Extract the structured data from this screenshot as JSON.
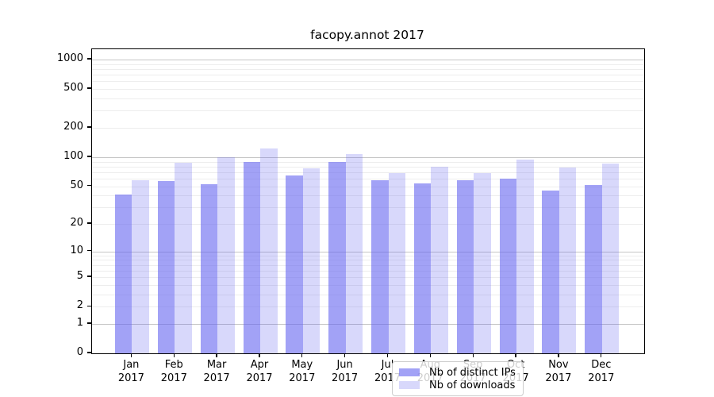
{
  "title": "facopy.annot 2017",
  "chart_data": {
    "type": "bar",
    "title": "facopy.annot 2017",
    "categories": [
      "Jan 2017",
      "Feb 2017",
      "Mar 2017",
      "Apr 2017",
      "May 2017",
      "Jun 2017",
      "Jul 2017",
      "Aug 2017",
      "Sep 2017",
      "Oct 2017",
      "Nov 2017",
      "Dec 2017"
    ],
    "series": [
      {
        "name": "Nb of distinct IPs",
        "values": [
          41,
          57,
          52,
          90,
          65,
          90,
          58,
          53,
          58,
          60,
          45,
          51
        ],
        "color": "rgba(100,100,240,0.60)"
      },
      {
        "name": "Nb of downloads",
        "values": [
          58,
          87,
          100,
          122,
          77,
          108,
          68,
          79,
          68,
          94,
          78,
          86
        ],
        "color": "rgba(100,100,240,0.25)"
      }
    ],
    "xlabel": "",
    "ylabel": "",
    "yscale": "log10(value+1)",
    "yticks": [
      1000,
      500,
      200,
      100,
      50,
      20,
      10,
      5,
      2,
      1,
      0
    ],
    "minor_gridlines": [
      2,
      3,
      4,
      5,
      6,
      7,
      8,
      9,
      20,
      30,
      40,
      50,
      60,
      70,
      80,
      90,
      200,
      300,
      400,
      500,
      600,
      700,
      800,
      900
    ],
    "major_gridlines": [
      1,
      10,
      100,
      1000
    ],
    "ylim": [
      0,
      1100
    ],
    "grid": "horizontal major+minor",
    "legend_position": "lower center",
    "colors": {
      "bar_dark": "rgba(100,100,240,0.60)",
      "bar_light": "rgba(100,100,240,0.25)",
      "grid_major": "#c6c6c6",
      "grid_minor": "#ededed",
      "axis": "#000000",
      "legend_border": "#cccccc"
    }
  },
  "legend": {
    "items": [
      {
        "label": "Nb of distinct IPs"
      },
      {
        "label": "Nb of downloads"
      }
    ]
  }
}
